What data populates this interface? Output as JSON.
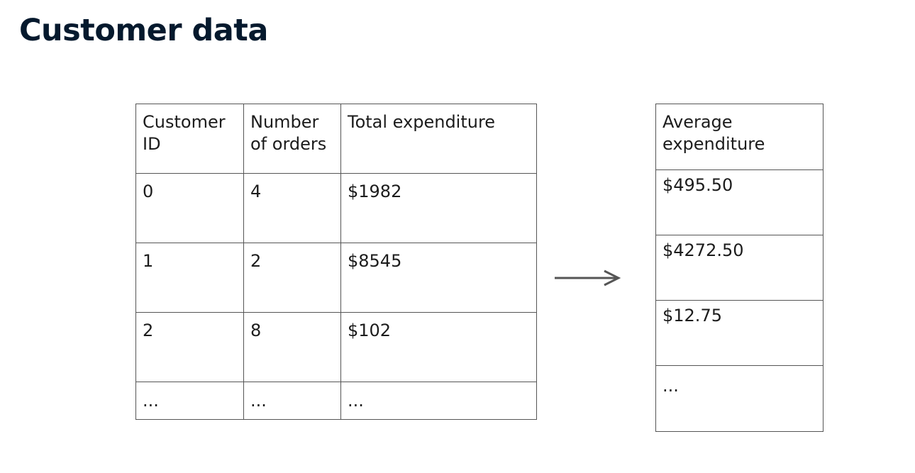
{
  "title": "Customer data",
  "left_table": {
    "headers": [
      "Customer ID",
      "Number of orders",
      "Total expenditure"
    ],
    "rows": [
      [
        "0",
        "4",
        "$1982"
      ],
      [
        "1",
        "2",
        "$8545"
      ],
      [
        "2",
        "8",
        "$102"
      ],
      [
        "...",
        "...",
        "..."
      ]
    ]
  },
  "right_table": {
    "headers": [
      "Average expenditure"
    ],
    "rows": [
      [
        "$495.50"
      ],
      [
        "$4272.50"
      ],
      [
        "$12.75"
      ],
      [
        "..."
      ]
    ]
  },
  "icons": {
    "arrow": "arrow-right-icon"
  },
  "colors": {
    "title": "#05192d",
    "border": "#555555",
    "arrow": "#555555"
  }
}
